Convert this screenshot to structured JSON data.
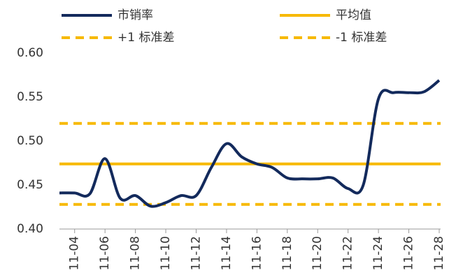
{
  "chart_data": {
    "type": "line",
    "categories": [
      null,
      "11-04",
      null,
      "11-06",
      null,
      "11-08",
      null,
      "11-10",
      null,
      "11-12",
      null,
      "11-14",
      null,
      "11-16",
      null,
      "11-18",
      null,
      "11-20",
      null,
      "11-22",
      null,
      "11-24",
      null,
      "11-26",
      null,
      "11-28"
    ],
    "series": [
      {
        "name": "市销率",
        "color": "#132a5c",
        "values": [
          0.441,
          0.441,
          0.44,
          0.48,
          0.435,
          0.438,
          0.426,
          0.43,
          0.438,
          0.438,
          0.47,
          0.497,
          0.482,
          0.474,
          0.47,
          0.458,
          0.457,
          0.457,
          0.458,
          0.446,
          0.45,
          0.548,
          0.555,
          0.555,
          0.556,
          0.569
        ]
      }
    ],
    "reference_lines": [
      {
        "name": "平均值",
        "value": 0.474,
        "color": "#f7b900",
        "style": "solid"
      },
      {
        "name": "+1 标准差",
        "value": 0.52,
        "color": "#f7b900",
        "style": "dashed"
      },
      {
        "name": "-1 标准差",
        "value": 0.428,
        "color": "#f7b900",
        "style": "dashed"
      }
    ],
    "ylim": [
      0.4,
      0.6
    ],
    "yticks": [
      {
        "value": 0.4,
        "label": "0.40"
      },
      {
        "value": 0.45,
        "label": "0.45"
      },
      {
        "value": 0.5,
        "label": "0.50"
      },
      {
        "value": 0.55,
        "label": "0.55"
      },
      {
        "value": 0.6,
        "label": "0.60"
      }
    ],
    "grid": false
  }
}
